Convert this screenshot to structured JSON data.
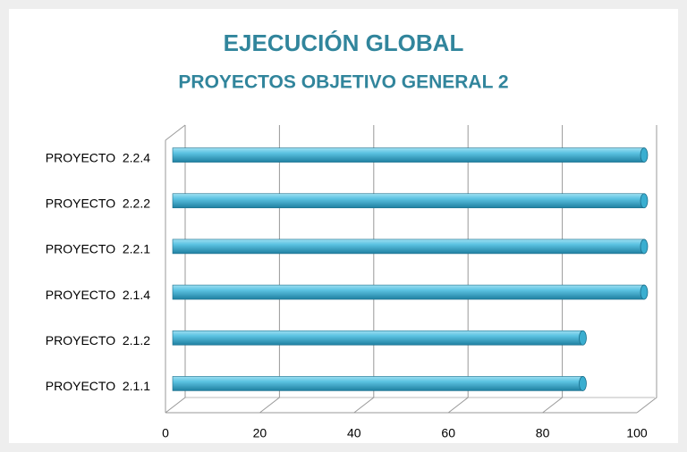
{
  "chart_data": {
    "type": "bar",
    "orientation": "horizontal",
    "title": "EJECUCIÓN GLOBAL",
    "subtitle": "PROYECTOS OBJETIVO GENERAL 2",
    "categories": [
      "PROYECTO  2.2.4",
      "PROYECTO  2.2.2",
      "PROYECTO  2.2.1",
      "PROYECTO  2.1.4",
      "PROYECTO  2.1.2",
      "PROYECTO  2.1.1"
    ],
    "values": [
      100,
      100,
      100,
      100,
      87,
      87
    ],
    "color": "#3aaed0",
    "xlim": [
      0,
      100
    ],
    "xticks": [
      0,
      20,
      40,
      60,
      80,
      100
    ],
    "grid": true
  }
}
